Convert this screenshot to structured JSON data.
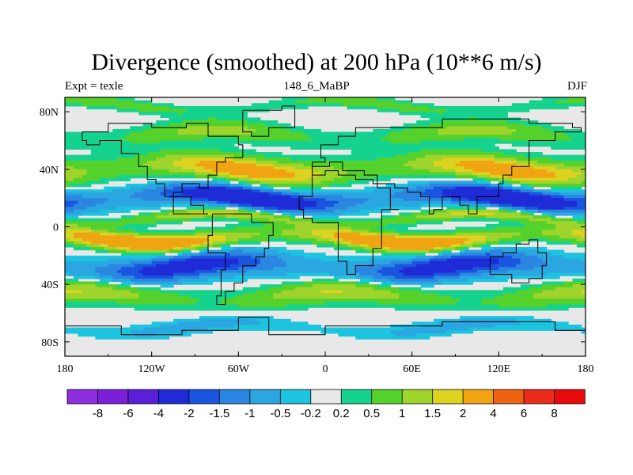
{
  "chart_data": {
    "type": "heatmap",
    "title": "Divergence (smoothed) at 200 hPa (10**6 m/s)",
    "left_string": "Expt = texle",
    "center_string": "148_6_MaBP",
    "right_string": "DJF",
    "x_ticks": [
      {
        "value": -180,
        "label": "180"
      },
      {
        "value": -120,
        "label": "120W"
      },
      {
        "value": -60,
        "label": "60W"
      },
      {
        "value": 0,
        "label": "0"
      },
      {
        "value": 60,
        "label": "60E"
      },
      {
        "value": 120,
        "label": "120E"
      },
      {
        "value": 180,
        "label": "180"
      }
    ],
    "y_ticks": [
      {
        "value": 80,
        "label": "80N"
      },
      {
        "value": 40,
        "label": "40N"
      },
      {
        "value": 0,
        "label": "0"
      },
      {
        "value": -40,
        "label": "40S"
      },
      {
        "value": -80,
        "label": "80S"
      }
    ],
    "xlim": [
      -180,
      180
    ],
    "ylim": [
      -90,
      90
    ],
    "contour_levels": [
      "-8",
      "-6",
      "-4",
      "-2",
      "-1.5",
      "-1",
      "-0.5",
      "-0.2",
      "0.2",
      "0.5",
      "1",
      "1.5",
      "2",
      "4",
      "6",
      "8"
    ],
    "colors": [
      "#8e2ce0",
      "#7b1fd8",
      "#5a1fd6",
      "#1f2bd6",
      "#1a55e0",
      "#2a86e0",
      "#2aa6e0",
      "#1cc4e0",
      "#e8e8e8",
      "#15d38f",
      "#55d12b",
      "#9ed42b",
      "#dcd321",
      "#f0a412",
      "#ee6210",
      "#ea2b1c",
      "#e80a0a"
    ],
    "bands": [
      {
        "lat": 84,
        "width": 4,
        "amp": 0.9,
        "phase": 40,
        "tilt": 20
      },
      {
        "lat": 64,
        "width": 7,
        "amp": 1.2,
        "phase": -60,
        "tilt": 30
      },
      {
        "lat": 40,
        "width": 9,
        "amp": 2.6,
        "phase": 150,
        "tilt": 50
      },
      {
        "lat": 20,
        "width": 8,
        "amp": -3.2,
        "phase": -40,
        "tilt": 25
      },
      {
        "lat": 6,
        "width": 4,
        "amp": 1.8,
        "phase": 120,
        "tilt": 15
      },
      {
        "lat": -8,
        "width": 6,
        "amp": 3.3,
        "phase": 70,
        "tilt": 35
      },
      {
        "lat": -28,
        "width": 9,
        "amp": -2.6,
        "phase": -80,
        "tilt": 30
      },
      {
        "lat": -48,
        "width": 8,
        "amp": 1.6,
        "phase": 30,
        "tilt": 40
      },
      {
        "lat": -70,
        "width": 5,
        "amp": -0.8,
        "phase": 100,
        "tilt": 20
      }
    ],
    "land_outlines": [
      [
        [
          -168,
          66
        ],
        [
          -150,
          72
        ],
        [
          -120,
          70
        ],
        [
          -95,
          72
        ],
        [
          -80,
          64
        ],
        [
          -60,
          58
        ],
        [
          -56,
          48
        ],
        [
          -68,
          44
        ],
        [
          -76,
          36
        ],
        [
          -82,
          28
        ],
        [
          -88,
          30
        ],
        [
          -98,
          24
        ],
        [
          -105,
          20
        ],
        [
          -92,
          16
        ],
        [
          -84,
          10
        ],
        [
          -80,
          8
        ],
        [
          -104,
          22
        ],
        [
          -112,
          30
        ],
        [
          -118,
          34
        ],
        [
          -124,
          42
        ],
        [
          -128,
          52
        ],
        [
          -140,
          60
        ],
        [
          -155,
          58
        ],
        [
          -165,
          60
        ],
        [
          -168,
          66
        ]
      ],
      [
        [
          -78,
          10
        ],
        [
          -60,
          10
        ],
        [
          -50,
          2
        ],
        [
          -36,
          -6
        ],
        [
          -38,
          -14
        ],
        [
          -42,
          -22
        ],
        [
          -48,
          -28
        ],
        [
          -58,
          -38
        ],
        [
          -64,
          -46
        ],
        [
          -68,
          -54
        ],
        [
          -74,
          -48
        ],
        [
          -72,
          -30
        ],
        [
          -70,
          -18
        ],
        [
          -80,
          -6
        ],
        [
          -78,
          10
        ]
      ],
      [
        [
          -56,
          80
        ],
        [
          -30,
          84
        ],
        [
          -20,
          78
        ],
        [
          -22,
          70
        ],
        [
          -40,
          62
        ],
        [
          -50,
          66
        ],
        [
          -58,
          76
        ],
        [
          -56,
          80
        ]
      ],
      [
        [
          -10,
          36
        ],
        [
          0,
          38
        ],
        [
          10,
          37
        ],
        [
          20,
          32
        ],
        [
          32,
          30
        ],
        [
          35,
          28
        ],
        [
          44,
          12
        ],
        [
          52,
          12
        ],
        [
          40,
          -4
        ],
        [
          40,
          -14
        ],
        [
          34,
          -26
        ],
        [
          20,
          -34
        ],
        [
          14,
          -24
        ],
        [
          10,
          -4
        ],
        [
          8,
          4
        ],
        [
          -8,
          5
        ],
        [
          -16,
          12
        ],
        [
          -17,
          21
        ],
        [
          -10,
          30
        ],
        [
          -10,
          36
        ]
      ],
      [
        [
          -10,
          36
        ],
        [
          -8,
          44
        ],
        [
          0,
          48
        ],
        [
          -4,
          58
        ],
        [
          6,
          58
        ],
        [
          10,
          64
        ],
        [
          20,
          70
        ],
        [
          40,
          68
        ],
        [
          60,
          70
        ],
        [
          80,
          74
        ],
        [
          110,
          76
        ],
        [
          140,
          72
        ],
        [
          170,
          70
        ],
        [
          178,
          66
        ],
        [
          160,
          60
        ],
        [
          142,
          52
        ],
        [
          140,
          42
        ],
        [
          128,
          36
        ],
        [
          122,
          30
        ],
        [
          120,
          22
        ],
        [
          108,
          20
        ],
        [
          106,
          10
        ],
        [
          100,
          8
        ],
        [
          98,
          16
        ],
        [
          92,
          22
        ],
        [
          88,
          22
        ],
        [
          80,
          12
        ],
        [
          76,
          8
        ],
        [
          72,
          20
        ],
        [
          66,
          24
        ],
        [
          58,
          24
        ],
        [
          56,
          26
        ],
        [
          48,
          30
        ],
        [
          36,
          36
        ],
        [
          28,
          40
        ],
        [
          20,
          40
        ],
        [
          12,
          44
        ],
        [
          4,
          43
        ],
        [
          -10,
          36
        ]
      ],
      [
        [
          114,
          -22
        ],
        [
          122,
          -18
        ],
        [
          132,
          -12
        ],
        [
          142,
          -10
        ],
        [
          146,
          -18
        ],
        [
          152,
          -26
        ],
        [
          150,
          -36
        ],
        [
          140,
          -38
        ],
        [
          130,
          -32
        ],
        [
          116,
          -34
        ],
        [
          114,
          -22
        ]
      ],
      [
        [
          -180,
          -70
        ],
        [
          -140,
          -74
        ],
        [
          -100,
          -72
        ],
        [
          -60,
          -64
        ],
        [
          -40,
          -76
        ],
        [
          0,
          -70
        ],
        [
          40,
          -68
        ],
        [
          80,
          -66
        ],
        [
          120,
          -66
        ],
        [
          160,
          -72
        ],
        [
          180,
          -78
        ],
        [
          180,
          -90
        ],
        [
          -180,
          -90
        ],
        [
          -180,
          -70
        ]
      ]
    ]
  }
}
